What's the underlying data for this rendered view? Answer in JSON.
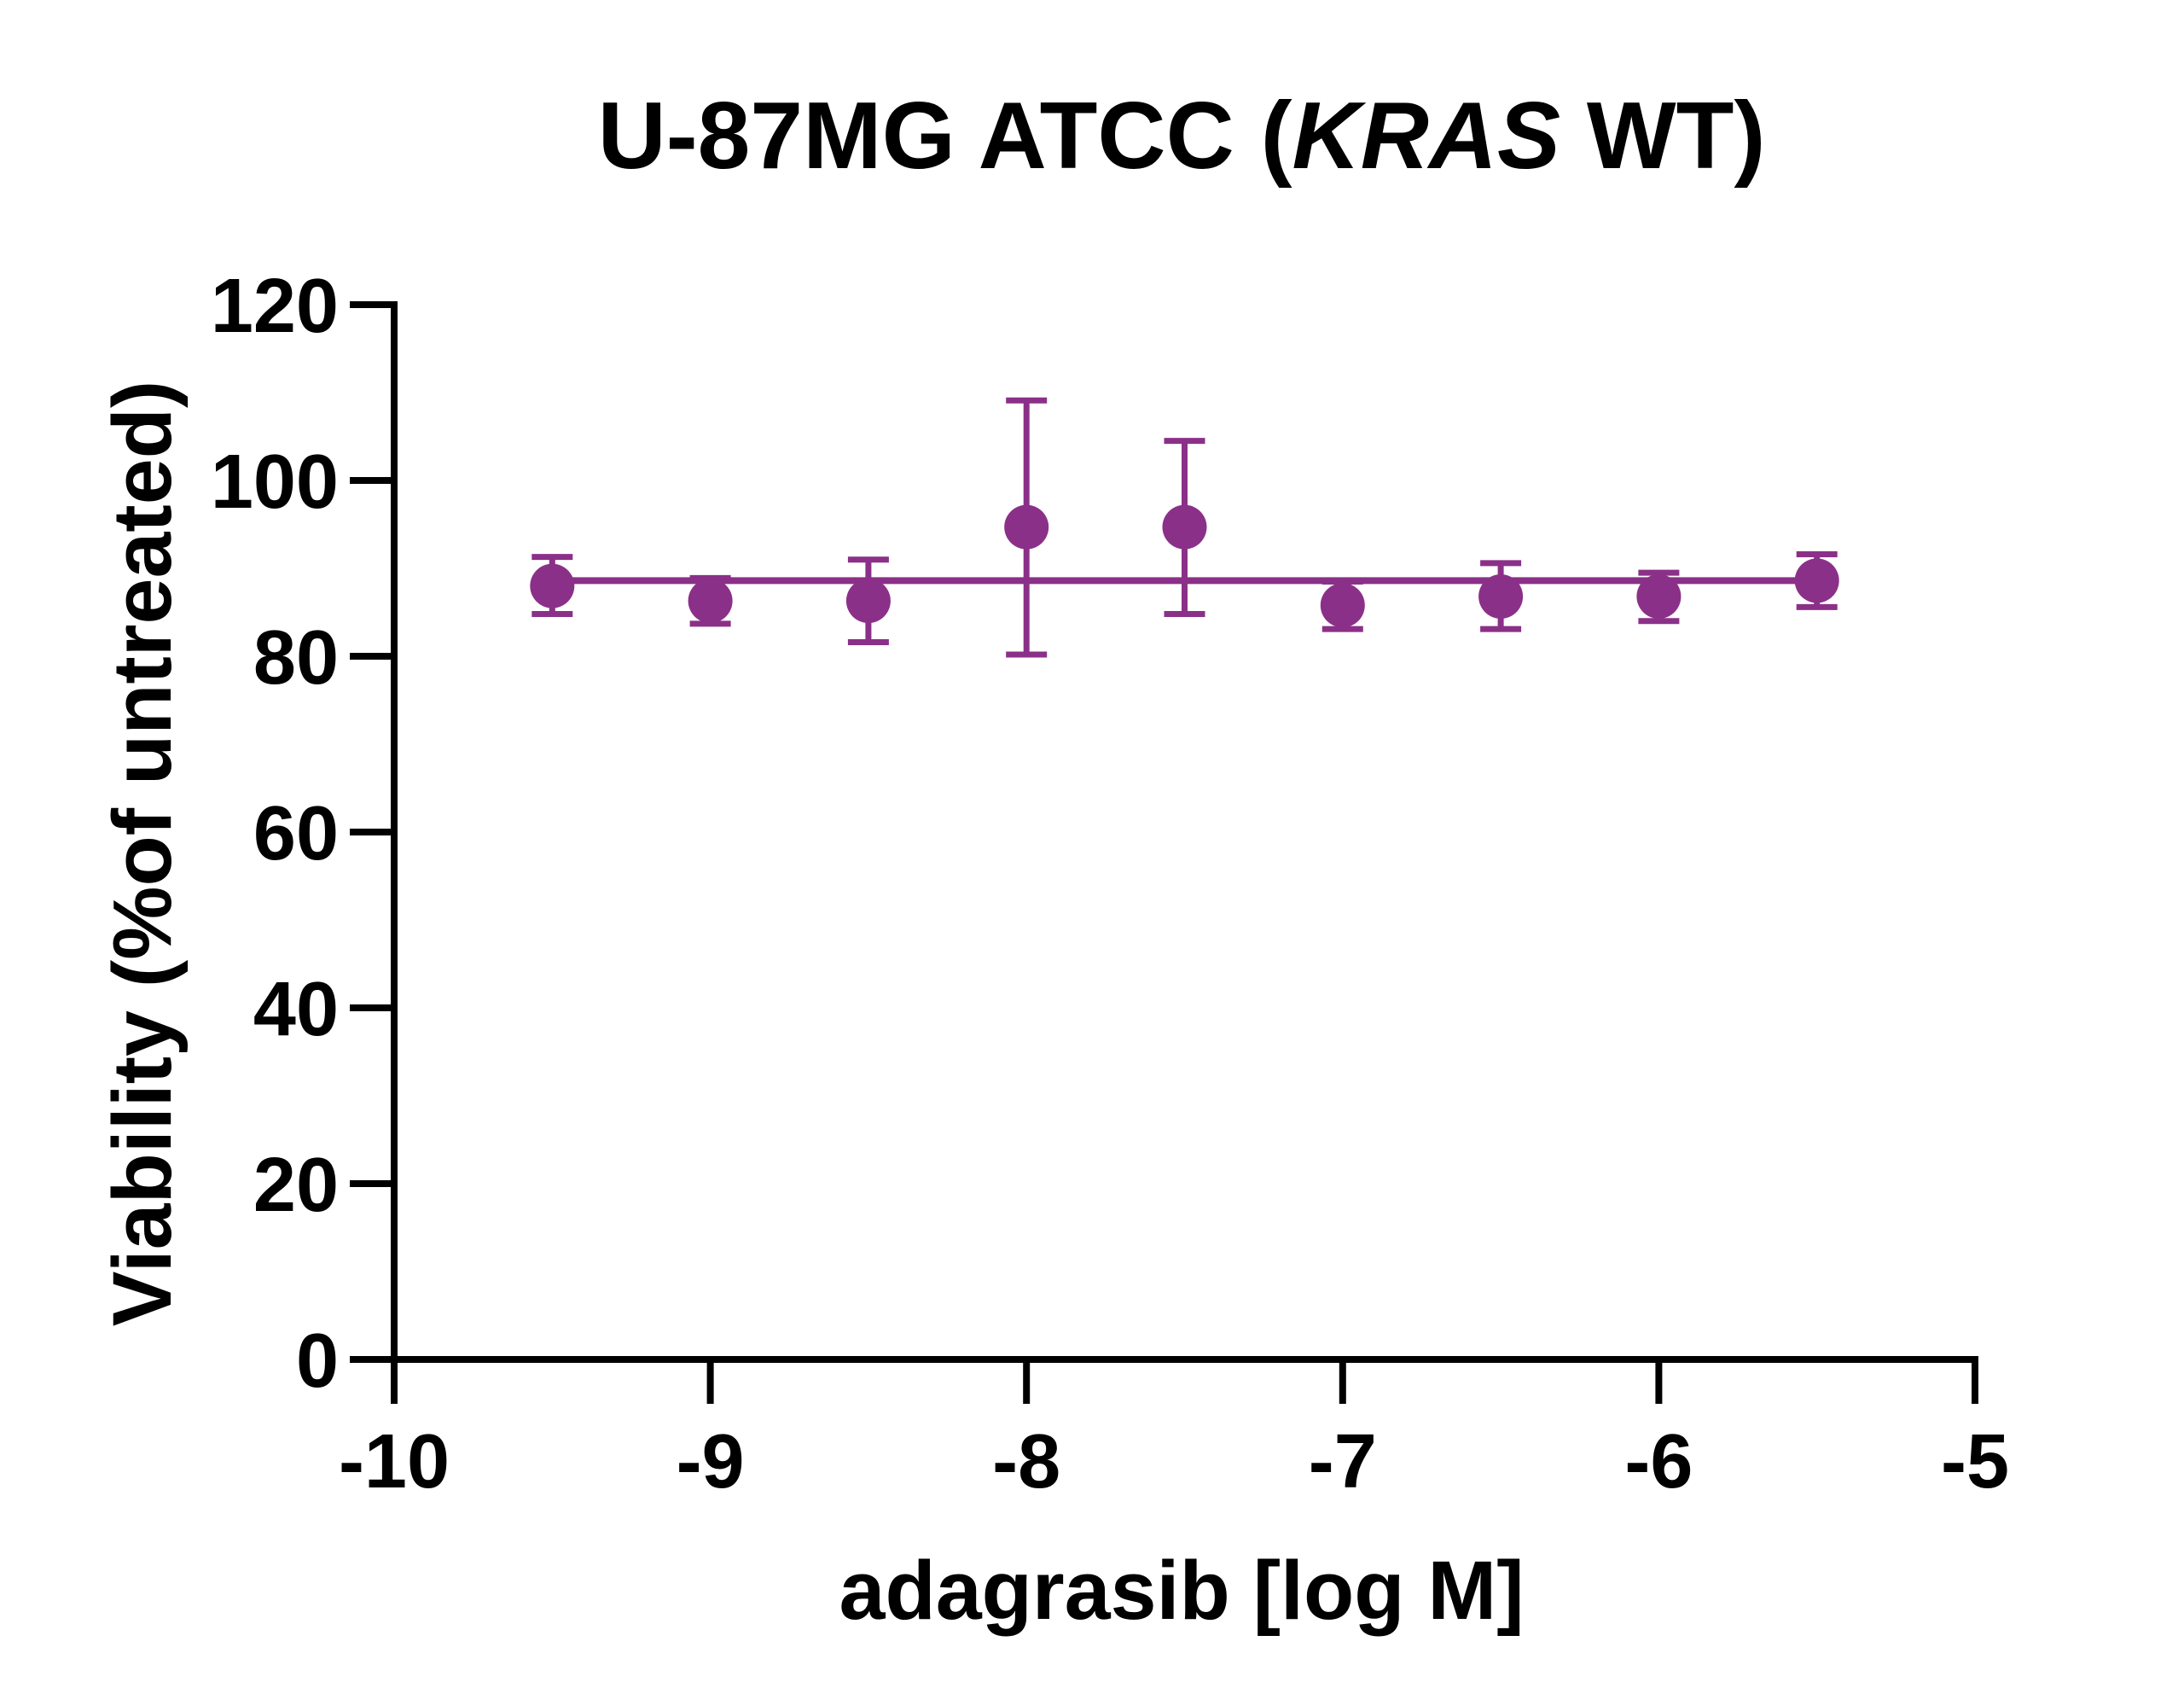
{
  "chart_data": {
    "type": "scatter",
    "title": {
      "prefix": "U-87MG ATCC (",
      "italic": "KRAS",
      "suffix": " WT)"
    },
    "xlabel": "adagrasib [log M]",
    "ylabel": "Viability (%of untreated)",
    "xlim": [
      -10,
      -5
    ],
    "ylim": [
      0,
      120
    ],
    "x_ticks": [
      -10,
      -9,
      -8,
      -7,
      -6,
      -5
    ],
    "x_tick_labels": [
      "-10",
      "-9",
      "-8",
      "-7",
      "-6",
      "-5"
    ],
    "y_ticks": [
      0,
      20,
      40,
      60,
      80,
      100,
      120
    ],
    "y_tick_labels": [
      "0",
      "20",
      "40",
      "60",
      "80",
      "100",
      "120"
    ],
    "grid": false,
    "color": "#8B3088",
    "series": [
      {
        "x": [
          -9.5,
          -9.0,
          -8.5,
          -8.0,
          -7.5,
          -7.0,
          -6.5,
          -6.0,
          -5.5
        ],
        "y": [
          88.0,
          86.3,
          86.3,
          94.7,
          94.7,
          85.8,
          86.8,
          86.8,
          88.6
        ],
        "err_low": [
          84.8,
          83.7,
          81.6,
          80.2,
          84.8,
          83.1,
          83.1,
          84.0,
          85.6
        ],
        "err_high": [
          91.3,
          88.9,
          91.0,
          109.1,
          104.5,
          88.5,
          90.6,
          89.5,
          91.6
        ]
      }
    ],
    "fit_line": {
      "type": "horizontal",
      "y": 88.6,
      "x_range": [
        -9.5,
        -5.5
      ]
    }
  }
}
